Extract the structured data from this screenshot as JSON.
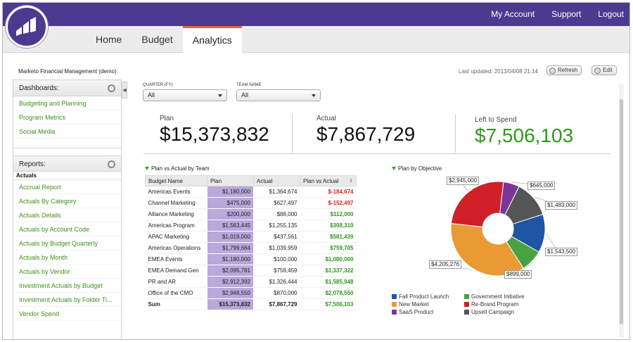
{
  "header": {
    "links": {
      "account": "My Account",
      "support": "Support",
      "logout": "Logout"
    },
    "tabs": {
      "home": "Home",
      "budget": "Budget",
      "analytics": "Analytics"
    }
  },
  "app": {
    "title": "Marketo Financial Management (demo)",
    "last_updated": "Last updated: 2013/04/08 21:14",
    "refresh_label": "Refresh",
    "edit_label": "Edit"
  },
  "sidebar": {
    "dashboards_title": "Dashboards:",
    "dashboards": [
      "Budgeting and Planning",
      "Program Metrics",
      "Social Media"
    ],
    "reports_title": "Reports:",
    "reports_group": "Actuals",
    "reports": [
      "Accrual Report",
      "Actuals By Category",
      "Actuals Details",
      "Actuals by Account Code",
      "Actuals by Budget Quarterly",
      "Actuals by Month",
      "Actuals by Vendor",
      "Investment Actuals by Budget",
      "Investment Actuals by Folder Ti...",
      "Vendor Spend"
    ]
  },
  "filters": {
    "quarter_label": "QUARTER (FY)",
    "quarter_value": "All",
    "team_label": "TEAM NAME",
    "team_value": "All"
  },
  "kpis": {
    "plan_label": "Plan",
    "plan_value": "$15,373,832",
    "actual_label": "Actual",
    "actual_value": "$7,867,729",
    "left_label": "Left to Spend",
    "left_value": "$7,506,103"
  },
  "table": {
    "title": "Plan vs Actual by Team",
    "headers": [
      "Budget Name",
      "Plan",
      "Actual",
      "Plan vs Actual"
    ],
    "rows": [
      [
        "Americas Events",
        "$1,180,000",
        "$1,364,674",
        "$-184,674"
      ],
      [
        "Channel Marketing",
        "$475,000",
        "$627,497",
        "$-152,497"
      ],
      [
        "Alliance Marketing",
        "$200,000",
        "$88,000",
        "$112,000"
      ],
      [
        "Americas Program",
        "$1,563,445",
        "$1,255,135",
        "$308,310"
      ],
      [
        "APAC Marketing",
        "$1,019,000",
        "$437,561",
        "$581,439"
      ],
      [
        "Americas Operations",
        "$1,799,664",
        "$1,039,959",
        "$759,705"
      ],
      [
        "EMEA Events",
        "$1,180,000",
        "$100,000",
        "$1,080,000"
      ],
      [
        "EMEA Demand Gen",
        "$2,095,781",
        "$758,459",
        "$1,337,322"
      ],
      [
        "PR and AR",
        "$2,912,392",
        "$1,326,444",
        "$1,585,948"
      ],
      [
        "Office of the CMO",
        "$2,948,550",
        "$870,000",
        "$2,078,550"
      ]
    ],
    "sum": [
      "Sum",
      "$15,373,832",
      "$7,867,729",
      "$7,506,103"
    ]
  },
  "chart_data": {
    "type": "pie",
    "title": "Plan by Objective",
    "categories": [
      "Fall Product Launch",
      "New Market",
      "SaaS Product",
      "Government Initiative",
      "Re-Brand Program",
      "Upsell Campaign"
    ],
    "values": [
      1543500,
      4205276,
      645000,
      899000,
      2945000,
      1483000
    ],
    "labels": [
      "$1,543,500",
      "$4,205,276",
      "$645,000",
      "$899,000",
      "$2,945,000",
      "$1,483,000"
    ],
    "colors": [
      "#1f55a4",
      "#e99a35",
      "#7d3595",
      "#48a23f",
      "#cf2027",
      "#555555"
    ],
    "donut": true,
    "legend": "bottom"
  }
}
